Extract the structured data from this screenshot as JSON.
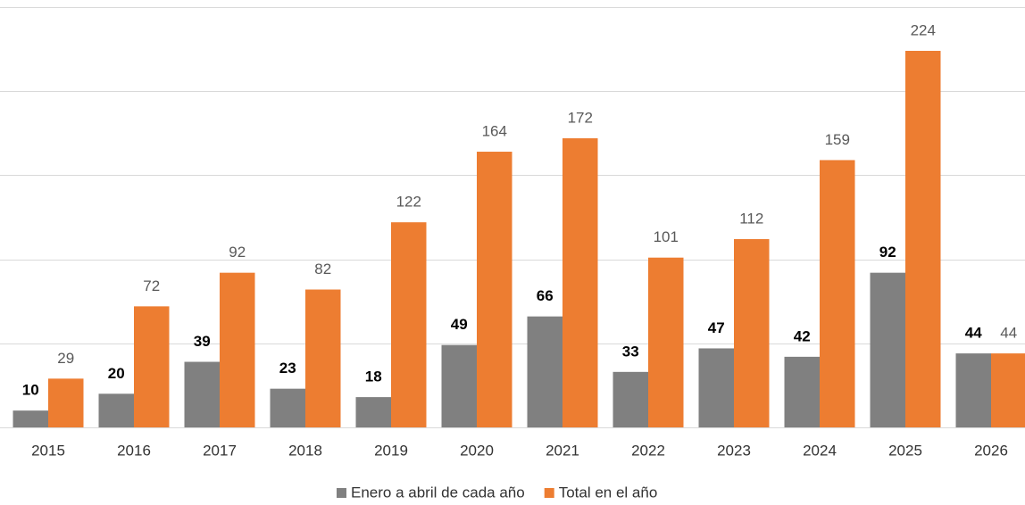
{
  "chart_data": {
    "type": "bar",
    "categories": [
      "2015",
      "2016",
      "2017",
      "2018",
      "2019",
      "2020",
      "2021",
      "2022",
      "2023",
      "2024",
      "2025",
      "2026"
    ],
    "series": [
      {
        "name": "Enero a abril de cada año",
        "color": "#808080",
        "values": [
          10,
          20,
          39,
          23,
          18,
          49,
          66,
          33,
          47,
          42,
          92,
          44
        ]
      },
      {
        "name": "Total en el año",
        "color": "#ed7d31",
        "values": [
          29,
          72,
          92,
          82,
          122,
          164,
          172,
          101,
          112,
          159,
          224,
          44
        ]
      }
    ],
    "ylim": [
      0,
      250
    ],
    "yticks": [
      0,
      50,
      100,
      150,
      200,
      250
    ],
    "grid": true,
    "legend": "bottom"
  }
}
